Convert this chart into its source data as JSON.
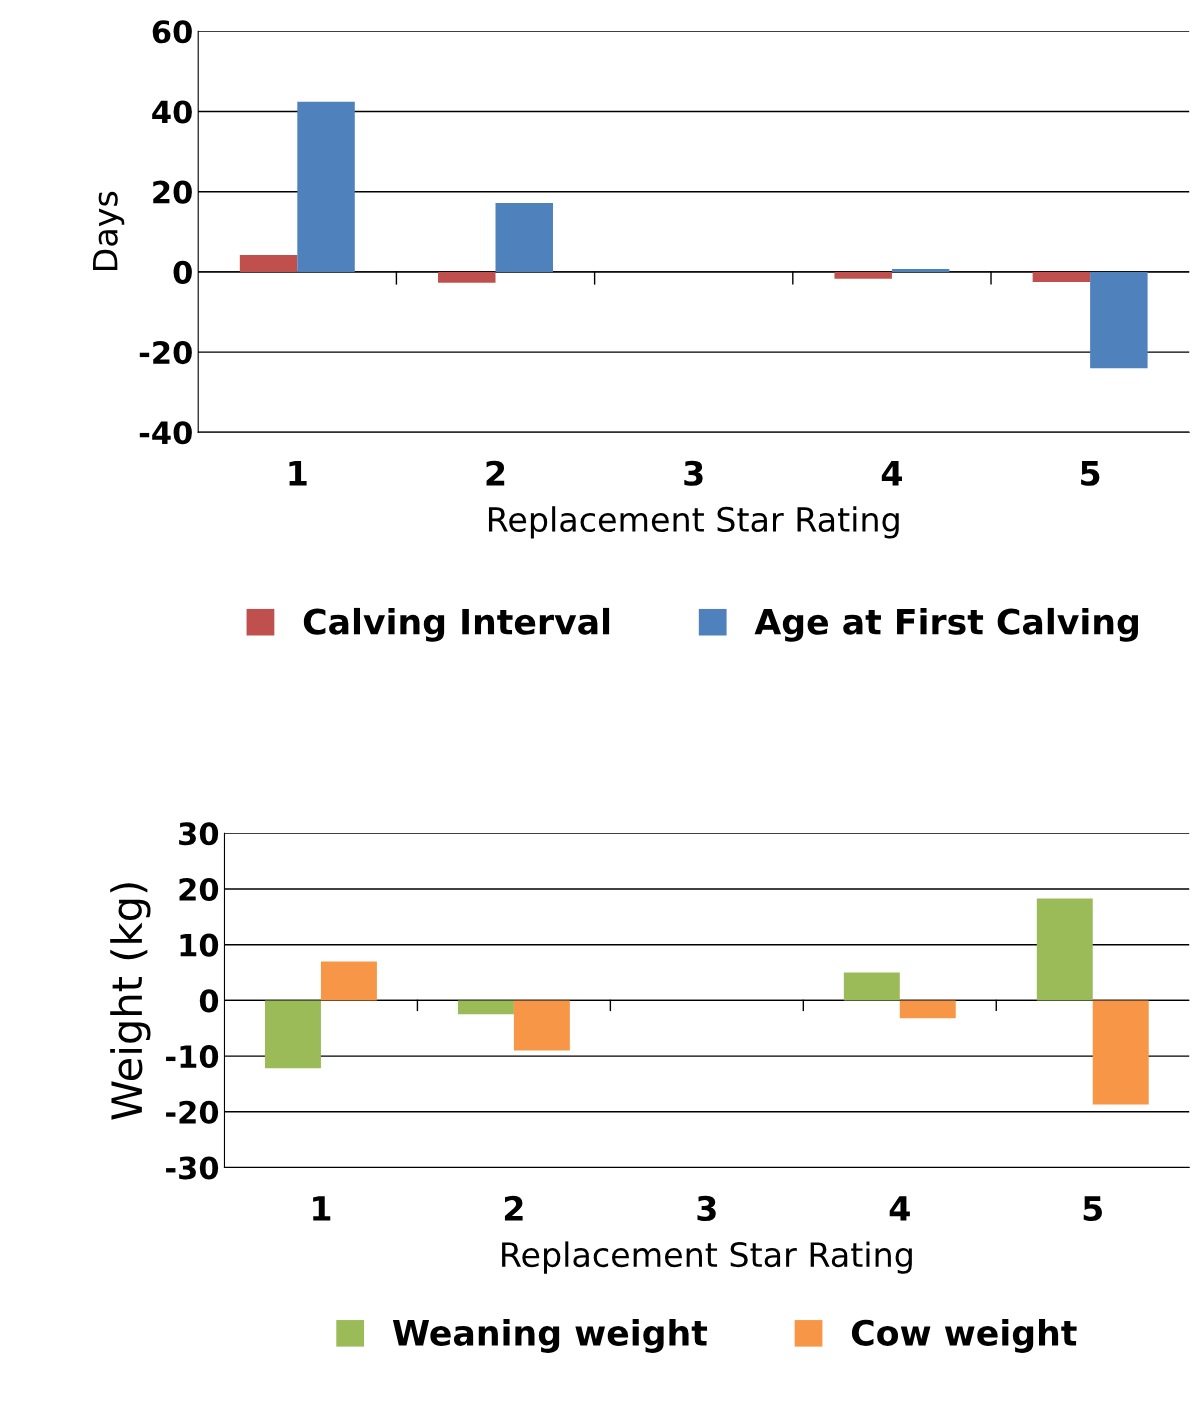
{
  "chart_data": [
    {
      "type": "bar",
      "categories": [
        "1",
        "2",
        "3",
        "4",
        "5"
      ],
      "xlabel": "Replacement Star Rating",
      "ylabel": "Days",
      "ylim": [
        -40,
        60
      ],
      "yticks": [
        -40,
        -20,
        0,
        20,
        40,
        60
      ],
      "grid": "y",
      "legend": "bottom",
      "series": [
        {
          "name": "Calving Interval",
          "color": "#c0504d",
          "values": [
            4.2,
            -2.7,
            0,
            -1.7,
            -2.5
          ]
        },
        {
          "name": "Age at First Calving",
          "color": "#4f81bd",
          "values": [
            42.4,
            17.2,
            0,
            0.7,
            -24
          ]
        }
      ]
    },
    {
      "type": "bar",
      "categories": [
        "1",
        "2",
        "3",
        "4",
        "5"
      ],
      "xlabel": "Replacement Star Rating",
      "ylabel": "Weight (kg)",
      "ylim": [
        -30,
        30
      ],
      "yticks": [
        -30,
        -20,
        -10,
        0,
        10,
        20,
        30
      ],
      "grid": "y",
      "legend": "bottom",
      "series": [
        {
          "name": "Weaning weight",
          "color": "#9bbb59",
          "values": [
            -12.2,
            -2.5,
            0,
            5.0,
            18.3
          ]
        },
        {
          "name": "Cow weight",
          "color": "#f79646",
          "values": [
            7.0,
            -9.0,
            0,
            -3.2,
            -18.7
          ]
        }
      ]
    }
  ]
}
